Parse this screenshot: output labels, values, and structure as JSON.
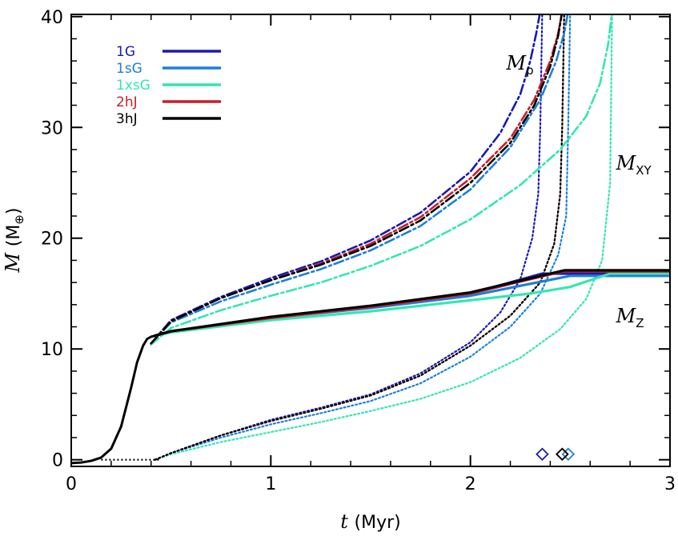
{
  "chart_data": {
    "type": "line",
    "xlabel": {
      "symbol": "t",
      "unit": "(Myr)"
    },
    "ylabel": {
      "symbol": "M",
      "unit": "(M",
      "unit_sub": "⊕",
      "unit_close": ")"
    },
    "xlim": [
      0,
      3
    ],
    "ylim": [
      -0.6,
      40.2
    ],
    "xticks": [
      0,
      1,
      2,
      3
    ],
    "yticks": [
      0,
      10,
      20,
      30,
      40
    ],
    "xtick_labels": [
      "0",
      "1",
      "2",
      "3"
    ],
    "ytick_labels": [
      "0",
      "10",
      "20",
      "30",
      "40"
    ],
    "legend_position": "top-left",
    "annotations": [
      {
        "main": "M",
        "sub": "p",
        "x": 2.18,
        "y": 35.2
      },
      {
        "main": "M",
        "sub": "XY",
        "x": 2.73,
        "y": 26.2
      },
      {
        "main": "M",
        "sub": "Z",
        "x": 2.73,
        "y": 12.4
      }
    ],
    "linestyles": {
      "M_p": "dash-dot",
      "M_Z": "solid",
      "M_XY": "dotted"
    },
    "series": [
      {
        "name": "1G",
        "color": "#1a1ab2",
        "Mp": {
          "x": [
            0.4,
            0.5,
            0.75,
            1.0,
            1.25,
            1.5,
            1.75,
            2.0,
            2.15,
            2.25,
            2.3,
            2.33,
            2.35
          ],
          "y": [
            10.5,
            12.6,
            14.7,
            16.4,
            17.9,
            19.8,
            22.3,
            26.0,
            29.5,
            33.0,
            36.0,
            38.5,
            40.5
          ]
        },
        "Mxy": {
          "x": [
            0.42,
            0.5,
            0.75,
            1.0,
            1.25,
            1.5,
            1.75,
            2.0,
            2.15,
            2.25,
            2.31,
            2.34,
            2.35,
            2.36
          ],
          "y": [
            0,
            0.6,
            2.2,
            3.6,
            4.7,
            5.9,
            7.8,
            10.6,
            13.3,
            16.3,
            20.0,
            24.0,
            30.0,
            40.5
          ]
        },
        "Mz": {
          "x": [
            0.42,
            0.5,
            1.0,
            1.5,
            2.0,
            2.36,
            3.0
          ],
          "y": [
            11.2,
            11.6,
            12.8,
            13.8,
            15.0,
            16.8,
            16.8
          ]
        }
      },
      {
        "name": "1sG",
        "color": "#1a80d9",
        "Mp": {
          "x": [
            0.4,
            0.5,
            0.75,
            1.0,
            1.25,
            1.5,
            1.75,
            2.0,
            2.2,
            2.35,
            2.43,
            2.47,
            2.49
          ],
          "y": [
            10.5,
            12.4,
            14.3,
            15.8,
            17.2,
            18.9,
            21.1,
            24.4,
            28.2,
            32.5,
            36.0,
            38.5,
            40.5
          ]
        },
        "Mxy": {
          "x": [
            0.42,
            0.5,
            0.75,
            1.0,
            1.25,
            1.5,
            1.75,
            2.0,
            2.2,
            2.35,
            2.44,
            2.48,
            2.49,
            2.5
          ],
          "y": [
            0,
            0.6,
            2.0,
            3.2,
            4.2,
            5.3,
            6.9,
            9.3,
            12.0,
            15.0,
            18.5,
            22.0,
            30.0,
            40.5
          ]
        },
        "Mz": {
          "x": [
            0.42,
            0.5,
            1.0,
            1.5,
            2.0,
            2.5,
            3.0
          ],
          "y": [
            11.2,
            11.6,
            12.8,
            13.7,
            14.8,
            16.6,
            16.6
          ]
        }
      },
      {
        "name": "1xsG",
        "color": "#33e6b3",
        "Mp": {
          "x": [
            0.4,
            0.5,
            0.75,
            1.0,
            1.25,
            1.5,
            1.75,
            2.0,
            2.25,
            2.45,
            2.58,
            2.65,
            2.69,
            2.71
          ],
          "y": [
            10.4,
            11.9,
            13.5,
            14.8,
            16.0,
            17.5,
            19.3,
            21.7,
            24.8,
            28.0,
            31.0,
            34.0,
            37.5,
            40.5
          ]
        },
        "Mxy": {
          "x": [
            0.42,
            0.5,
            0.75,
            1.0,
            1.25,
            1.5,
            1.75,
            2.0,
            2.25,
            2.45,
            2.58,
            2.66,
            2.7,
            2.71
          ],
          "y": [
            0,
            0.5,
            1.6,
            2.5,
            3.4,
            4.4,
            5.5,
            7.0,
            9.2,
            11.8,
            14.5,
            18.0,
            25.0,
            40.5
          ]
        },
        "Mz": {
          "x": [
            0.42,
            0.5,
            1.0,
            1.5,
            2.0,
            2.3,
            2.5,
            2.7,
            3.0
          ],
          "y": [
            11.2,
            11.5,
            12.6,
            13.4,
            14.4,
            15.0,
            15.6,
            16.8,
            16.8
          ]
        }
      },
      {
        "name": "2hJ",
        "color": "#c81e28",
        "Mp": {
          "x": [
            0.4,
            0.5,
            0.75,
            1.0,
            1.25,
            1.5,
            1.75,
            2.0,
            2.2,
            2.32,
            2.4,
            2.44,
            2.46
          ],
          "y": [
            10.5,
            12.5,
            14.6,
            16.2,
            17.7,
            19.5,
            21.9,
            25.4,
            29.0,
            32.5,
            36.0,
            38.5,
            40.5
          ]
        },
        "Mxy": {
          "x": [
            0.42,
            0.5,
            0.75,
            1.0,
            1.25,
            1.5,
            1.75,
            2.0,
            2.2,
            2.35,
            2.42,
            2.45,
            2.46,
            2.47
          ],
          "y": [
            0,
            0.6,
            2.2,
            3.5,
            4.6,
            5.8,
            7.6,
            10.3,
            13.0,
            16.0,
            19.5,
            24.0,
            30.0,
            40.5
          ]
        },
        "Mz": {
          "x": [
            0.42,
            0.5,
            1.0,
            1.5,
            2.0,
            2.46,
            3.0
          ],
          "y": [
            11.2,
            11.6,
            12.8,
            13.8,
            15.0,
            17.0,
            17.0
          ]
        }
      },
      {
        "name": "3hJ",
        "color": "#000000",
        "Mp": {
          "x": [
            0.4,
            0.5,
            0.75,
            1.0,
            1.25,
            1.5,
            1.75,
            2.0,
            2.2,
            2.32,
            2.4,
            2.44,
            2.46
          ],
          "y": [
            10.5,
            12.5,
            14.6,
            16.2,
            17.6,
            19.3,
            21.6,
            25.0,
            28.6,
            32.0,
            35.5,
            38.3,
            40.5
          ]
        },
        "Mxy": {
          "x": [
            0.42,
            0.5,
            0.75,
            1.0,
            1.25,
            1.5,
            1.75,
            2.0,
            2.2,
            2.35,
            2.42,
            2.45,
            2.46,
            2.47
          ],
          "y": [
            0,
            0.6,
            2.2,
            3.5,
            4.6,
            5.8,
            7.6,
            10.3,
            13.0,
            16.0,
            19.5,
            24.0,
            30.0,
            40.5
          ]
        },
        "Mz": {
          "x": [
            0.42,
            0.5,
            1.0,
            1.5,
            2.0,
            2.47,
            3.0
          ],
          "y": [
            11.2,
            11.6,
            12.9,
            13.9,
            15.1,
            17.1,
            17.1
          ]
        }
      }
    ],
    "common_core": {
      "x": [
        0,
        0.05,
        0.1,
        0.15,
        0.2,
        0.25,
        0.3,
        0.33,
        0.36,
        0.38,
        0.4,
        0.42
      ],
      "y": [
        -0.3,
        -0.25,
        -0.1,
        0.2,
        1.0,
        3.0,
        6.5,
        8.8,
        10.3,
        10.9,
        11.1,
        11.2
      ]
    },
    "diamond_markers": [
      {
        "series": "1G",
        "x": 2.36,
        "y": 0.5
      },
      {
        "series": "1sG",
        "x": 2.49,
        "y": 0.5
      },
      {
        "series": "2hJ",
        "x": 2.46,
        "y": 0.5
      },
      {
        "series": "3hJ",
        "x": 2.46,
        "y": 0.5
      }
    ]
  }
}
